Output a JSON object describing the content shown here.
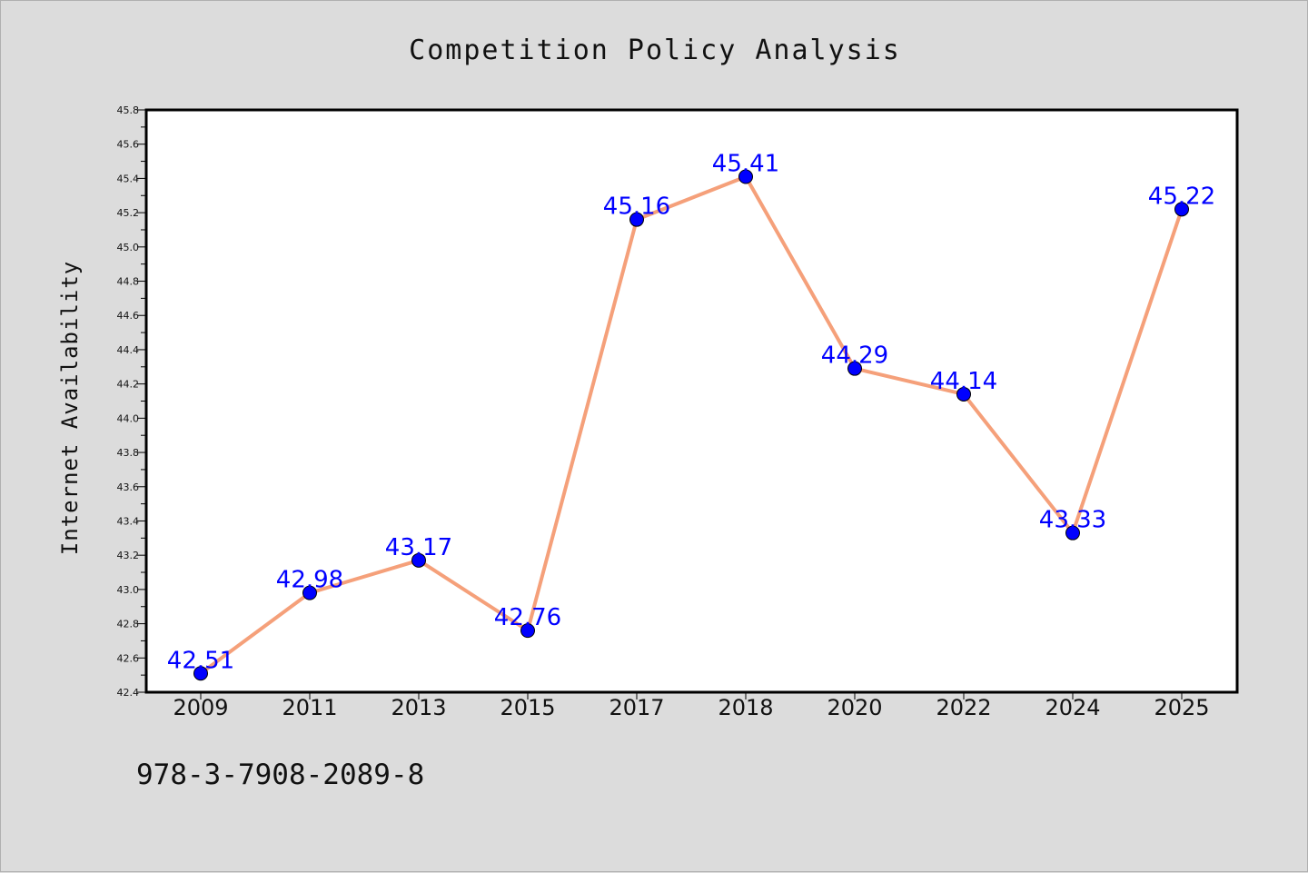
{
  "footer": {
    "identifier": "978-3-7908-2089-8"
  },
  "chart_data": {
    "type": "line",
    "title": "Competition Policy Analysis",
    "xlabel": "",
    "ylabel": "Internet Availability",
    "categories": [
      "2009",
      "2011",
      "2013",
      "2015",
      "2017",
      "2018",
      "2020",
      "2022",
      "2024",
      "2025"
    ],
    "series": [
      {
        "values": [
          42.51,
          42.98,
          43.17,
          42.76,
          45.16,
          45.41,
          44.29,
          44.14,
          43.33,
          45.22
        ],
        "data_labels": [
          "42.51",
          "42.98",
          "43.17",
          "42.76",
          "45.16",
          "45.41",
          "44.29",
          "44.14",
          "43.33",
          "45.22"
        ],
        "line_color": "#f5a07a",
        "marker_color": "#0000ff"
      }
    ],
    "ylim": [
      42.4,
      45.8
    ],
    "yticks": [
      "42.4",
      "42.6",
      "42.8",
      "43.0",
      "43.2",
      "43.4",
      "43.6",
      "43.8",
      "44.0",
      "44.2",
      "44.4",
      "44.6",
      "44.8",
      "45.0",
      "45.2",
      "45.4",
      "45.6",
      "45.8"
    ],
    "grid": false,
    "legend": "none",
    "colors": {
      "background": "#dcdcdc",
      "plot_background": "#ffffff",
      "label_color": "#0000ff"
    }
  }
}
